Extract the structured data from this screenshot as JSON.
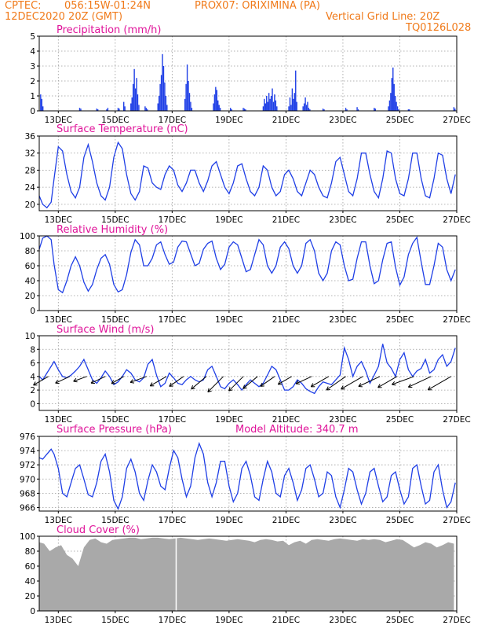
{
  "header": {
    "source": "CPTEC:",
    "coords": "056:15W-01:24N",
    "station": "PROX07: ORIXIMINA (PA)",
    "datetime": "12DEC2020 20Z (GMT)",
    "grid_note": "Vertical Grid Line: 20Z",
    "code": "TQ0126L028"
  },
  "colors": {
    "header": "#f07a1a",
    "title": "#e0149a",
    "series": "#1f3fe6",
    "cloud": "#a9a9a9",
    "grid": "#999999"
  },
  "x_axis": {
    "unit": "day (12 Dec 2020 = 0)",
    "range": [
      0.33,
      15.0
    ],
    "ticks": [
      {
        "day": 1,
        "label": "13DEC"
      },
      {
        "day": 3,
        "label": "15DEC"
      },
      {
        "day": 5,
        "label": "17DEC"
      },
      {
        "day": 7,
        "label": "19DEC"
      },
      {
        "day": 9,
        "label": "21DEC"
      },
      {
        "day": 11,
        "label": "23DEC"
      },
      {
        "day": 13,
        "label": "25DEC"
      },
      {
        "day": 15,
        "label": "27DEC"
      }
    ]
  },
  "chart_data": [
    {
      "id": "precip",
      "type": "bar",
      "title": "Precipitation (mm/h)",
      "ylim": [
        0,
        5
      ],
      "yticks": [
        0,
        1,
        2,
        3,
        4,
        5
      ],
      "grid": true,
      "x": [
        0.38,
        0.42,
        0.46,
        1.75,
        1.79,
        2.35,
        2.39,
        2.7,
        2.74,
        3.1,
        3.14,
        3.3,
        3.34,
        3.55,
        3.59,
        3.63,
        3.67,
        3.71,
        3.75,
        3.79,
        3.83,
        4.05,
        4.09,
        4.13,
        4.5,
        4.54,
        4.58,
        4.62,
        4.66,
        4.7,
        4.74,
        4.78,
        4.82,
        5.45,
        5.49,
        5.53,
        5.57,
        5.61,
        5.65,
        5.69,
        6.45,
        6.49,
        6.53,
        6.57,
        6.61,
        6.65,
        6.69,
        7.05,
        7.09,
        7.5,
        7.54,
        7.58,
        8.2,
        8.24,
        8.28,
        8.32,
        8.36,
        8.4,
        8.44,
        8.48,
        8.52,
        8.56,
        8.6,
        8.64,
        8.68,
        9.1,
        9.14,
        9.18,
        9.22,
        9.26,
        9.3,
        9.34,
        9.38,
        9.6,
        9.64,
        9.68,
        9.72,
        9.76,
        9.8,
        9.84,
        10.3,
        10.34,
        11.1,
        11.14,
        11.5,
        11.54,
        12.1,
        12.14,
        12.6,
        12.64,
        12.68,
        12.72,
        12.76,
        12.8,
        12.84,
        12.88,
        12.92,
        12.96,
        13.3,
        13.34,
        14.9,
        14.94
      ],
      "values": [
        1.1,
        0.8,
        0.3,
        0.2,
        0.15,
        0.15,
        0.1,
        0.1,
        0.2,
        0.2,
        0.15,
        0.6,
        0.3,
        0.5,
        0.9,
        1.8,
        2.8,
        1.5,
        2.2,
        1.1,
        0.4,
        0.3,
        0.2,
        0.1,
        0.5,
        1.0,
        1.8,
        2.4,
        3.8,
        3.0,
        1.9,
        1.0,
        0.4,
        0.8,
        1.8,
        3.1,
        2.0,
        1.2,
        0.6,
        0.2,
        0.5,
        1.1,
        1.6,
        1.4,
        0.7,
        0.4,
        0.2,
        0.2,
        0.1,
        0.2,
        0.15,
        0.1,
        0.3,
        0.8,
        0.5,
        1.0,
        0.6,
        1.2,
        0.8,
        1.0,
        1.5,
        0.6,
        1.1,
        0.7,
        0.3,
        0.3,
        0.9,
        0.4,
        1.5,
        0.8,
        1.2,
        2.7,
        0.6,
        0.3,
        0.5,
        0.9,
        0.4,
        0.6,
        0.2,
        0.1,
        0.15,
        0.1,
        0.2,
        0.1,
        0.25,
        0.1,
        0.2,
        0.15,
        0.3,
        0.7,
        1.2,
        2.2,
        2.9,
        1.8,
        1.0,
        0.6,
        0.3,
        0.1,
        0.1,
        0.1,
        0.25,
        0.15
      ]
    },
    {
      "id": "temp",
      "type": "line",
      "title": "Surface Temperature (nC)",
      "ylim": [
        18.5,
        36
      ],
      "yticks": [
        20,
        24,
        28,
        32,
        36
      ],
      "grid": true,
      "x": [
        0.33,
        0.45,
        0.6,
        0.75,
        0.85,
        1.0,
        1.15,
        1.3,
        1.45,
        1.6,
        1.75,
        1.9,
        2.05,
        2.2,
        2.35,
        2.5,
        2.65,
        2.8,
        2.95,
        3.1,
        3.25,
        3.4,
        3.55,
        3.7,
        3.85,
        4.0,
        4.15,
        4.3,
        4.45,
        4.6,
        4.75,
        4.9,
        5.05,
        5.2,
        5.35,
        5.5,
        5.65,
        5.8,
        5.95,
        6.1,
        6.25,
        6.4,
        6.55,
        6.7,
        6.85,
        7.0,
        7.15,
        7.3,
        7.45,
        7.6,
        7.75,
        7.9,
        8.05,
        8.2,
        8.35,
        8.5,
        8.65,
        8.8,
        8.95,
        9.1,
        9.25,
        9.4,
        9.55,
        9.7,
        9.85,
        10.0,
        10.15,
        10.3,
        10.45,
        10.6,
        10.75,
        10.9,
        11.05,
        11.2,
        11.35,
        11.5,
        11.65,
        11.8,
        11.95,
        12.1,
        12.25,
        12.4,
        12.55,
        12.7,
        12.85,
        13.0,
        13.15,
        13.3,
        13.45,
        13.6,
        13.75,
        13.9,
        14.05,
        14.2,
        14.35,
        14.5,
        14.65,
        14.8,
        14.95
      ],
      "values": [
        22,
        20,
        19.2,
        20.5,
        26,
        33.5,
        32.5,
        27,
        23,
        21.5,
        24,
        31,
        34,
        30,
        25,
        22,
        21,
        24,
        31,
        34.5,
        33,
        27,
        22.5,
        21,
        23,
        29,
        28.5,
        25,
        24,
        23.5,
        27,
        29,
        28,
        24.5,
        23,
        25,
        28,
        28,
        25,
        23,
        25.5,
        29,
        30,
        27,
        24,
        22.5,
        25,
        29,
        29.5,
        26,
        23,
        22,
        24,
        29,
        28,
        24,
        22,
        23,
        27,
        28,
        26,
        23,
        22,
        25,
        28,
        27,
        24,
        22,
        21.5,
        25,
        30,
        31,
        27,
        23,
        22,
        26,
        32,
        32,
        27,
        23,
        21.5,
        26,
        32.5,
        32,
        26,
        22.5,
        22,
        26,
        32,
        32,
        26,
        22,
        21.5,
        26,
        32,
        31.5,
        26,
        22.5,
        27
      ]
    },
    {
      "id": "humidity",
      "type": "line",
      "title": "Relative Humidity (%)",
      "ylim": [
        0,
        100
      ],
      "yticks": [
        0,
        20,
        40,
        60,
        80,
        100
      ],
      "grid": true,
      "x": [
        0.33,
        0.45,
        0.6,
        0.75,
        0.85,
        1.0,
        1.15,
        1.3,
        1.45,
        1.6,
        1.75,
        1.9,
        2.05,
        2.2,
        2.35,
        2.5,
        2.65,
        2.8,
        2.95,
        3.1,
        3.25,
        3.4,
        3.55,
        3.7,
        3.85,
        4.0,
        4.15,
        4.3,
        4.45,
        4.6,
        4.75,
        4.9,
        5.05,
        5.2,
        5.35,
        5.5,
        5.65,
        5.8,
        5.95,
        6.1,
        6.25,
        6.4,
        6.55,
        6.7,
        6.85,
        7.0,
        7.15,
        7.3,
        7.45,
        7.6,
        7.75,
        7.9,
        8.05,
        8.2,
        8.35,
        8.5,
        8.65,
        8.8,
        8.95,
        9.1,
        9.25,
        9.4,
        9.55,
        9.7,
        9.85,
        10.0,
        10.15,
        10.3,
        10.45,
        10.6,
        10.75,
        10.9,
        11.05,
        11.2,
        11.35,
        11.5,
        11.65,
        11.8,
        11.95,
        12.1,
        12.25,
        12.4,
        12.55,
        12.7,
        12.85,
        13.0,
        13.15,
        13.3,
        13.45,
        13.6,
        13.75,
        13.9,
        14.05,
        14.2,
        14.35,
        14.5,
        14.65,
        14.8,
        14.95
      ],
      "values": [
        82,
        97,
        100,
        95,
        62,
        28,
        24,
        40,
        60,
        72,
        60,
        38,
        26,
        35,
        55,
        70,
        75,
        62,
        35,
        25,
        28,
        48,
        78,
        95,
        88,
        60,
        60,
        70,
        88,
        92,
        75,
        62,
        65,
        85,
        93,
        92,
        76,
        60,
        63,
        82,
        90,
        93,
        70,
        55,
        62,
        85,
        92,
        88,
        70,
        52,
        55,
        75,
        95,
        88,
        60,
        50,
        60,
        85,
        92,
        83,
        60,
        50,
        60,
        90,
        95,
        80,
        50,
        40,
        50,
        80,
        92,
        88,
        60,
        40,
        42,
        70,
        92,
        92,
        60,
        36,
        40,
        68,
        90,
        92,
        58,
        34,
        45,
        75,
        90,
        98,
        65,
        35,
        35,
        60,
        90,
        85,
        55,
        40,
        55
      ]
    },
    {
      "id": "wind",
      "type": "line",
      "title": "Surface Wind (m/s)",
      "ylim": [
        -1,
        10
      ],
      "yticks": [
        0,
        2,
        4,
        6,
        8,
        10
      ],
      "grid": true,
      "x": [
        0.33,
        0.45,
        0.6,
        0.75,
        0.85,
        1.0,
        1.15,
        1.3,
        1.45,
        1.6,
        1.75,
        1.9,
        2.05,
        2.2,
        2.35,
        2.5,
        2.65,
        2.8,
        2.95,
        3.1,
        3.25,
        3.4,
        3.55,
        3.7,
        3.85,
        4.0,
        4.15,
        4.3,
        4.45,
        4.6,
        4.75,
        4.9,
        5.05,
        5.2,
        5.35,
        5.5,
        5.65,
        5.8,
        5.95,
        6.1,
        6.25,
        6.4,
        6.55,
        6.7,
        6.85,
        7.0,
        7.15,
        7.3,
        7.45,
        7.6,
        7.75,
        7.9,
        8.05,
        8.2,
        8.35,
        8.5,
        8.65,
        8.8,
        8.95,
        9.1,
        9.25,
        9.4,
        9.55,
        9.7,
        9.85,
        10.0,
        10.15,
        10.3,
        10.45,
        10.6,
        10.75,
        10.9,
        11.05,
        11.2,
        11.35,
        11.5,
        11.65,
        11.8,
        11.95,
        12.1,
        12.25,
        12.4,
        12.55,
        12.7,
        12.85,
        13.0,
        13.15,
        13.3,
        13.45,
        13.6,
        13.75,
        13.9,
        14.05,
        14.2,
        14.35,
        14.5,
        14.65,
        14.8,
        14.95
      ],
      "values": [
        4,
        3.5,
        4.5,
        5.5,
        6.2,
        5,
        4,
        3.8,
        4.2,
        4.8,
        5.5,
        6.5,
        5,
        3.5,
        3,
        3.8,
        4.8,
        4,
        2.8,
        3.2,
        4,
        5,
        4.5,
        3.5,
        3.2,
        3.8,
        5.8,
        6.5,
        4.2,
        2.5,
        3,
        4.5,
        3.8,
        3,
        2.8,
        3.5,
        4,
        3.5,
        3.2,
        3.5,
        5,
        5.5,
        4,
        2.5,
        2.2,
        3,
        3.5,
        2.8,
        2,
        2.8,
        3.5,
        3,
        2.5,
        3,
        4.2,
        5.5,
        5,
        3.5,
        2,
        2,
        2.5,
        3.5,
        3,
        2.2,
        1.8,
        1.5,
        2.5,
        3.2,
        3,
        2.8,
        3.5,
        4.2,
        8.2,
        6.5,
        4,
        5.5,
        6.2,
        4.8,
        3,
        4.2,
        5.5,
        8.8,
        6,
        5.2,
        4,
        6.5,
        7.5,
        5,
        4,
        4.8,
        5.2,
        6.5,
        4.5,
        5,
        6.5,
        7.2,
        5.5,
        6.2,
        8.2
      ],
      "vectors_x": [
        0.65,
        1.4,
        2.0,
        2.65,
        3.3,
        4.1,
        4.8,
        5.4,
        6.2,
        6.8,
        7.5,
        8.0,
        8.6,
        9.2,
        9.9,
        10.5,
        11.1,
        11.7,
        12.3,
        12.9,
        13.5,
        14.1,
        14.8
      ],
      "vectors_angle_deg": [
        210,
        205,
        200,
        205,
        210,
        200,
        210,
        215,
        220,
        225,
        225,
        220,
        215,
        210,
        205,
        210,
        215,
        210,
        205,
        210,
        200,
        205,
        210
      ],
      "vectors_len": [
        22,
        20,
        18,
        20,
        18,
        22,
        24,
        22,
        25,
        28,
        26,
        24,
        22,
        20,
        22,
        26,
        30,
        32,
        30,
        28,
        30,
        32,
        34
      ]
    },
    {
      "id": "pressure",
      "type": "line",
      "title": "Surface Pressure (hPa)",
      "annotation": "Model Altitude: 340.7 m",
      "ylim": [
        965.5,
        976
      ],
      "yticks": [
        966,
        968,
        970,
        972,
        974,
        976
      ],
      "grid": true,
      "x": [
        0.33,
        0.45,
        0.6,
        0.75,
        0.85,
        1.0,
        1.15,
        1.3,
        1.45,
        1.6,
        1.75,
        1.9,
        2.05,
        2.2,
        2.35,
        2.5,
        2.65,
        2.8,
        2.95,
        3.1,
        3.25,
        3.4,
        3.55,
        3.7,
        3.85,
        4.0,
        4.15,
        4.3,
        4.45,
        4.6,
        4.75,
        4.9,
        5.05,
        5.2,
        5.35,
        5.5,
        5.65,
        5.8,
        5.95,
        6.1,
        6.25,
        6.4,
        6.55,
        6.7,
        6.85,
        7.0,
        7.15,
        7.3,
        7.45,
        7.6,
        7.75,
        7.9,
        8.05,
        8.2,
        8.35,
        8.5,
        8.65,
        8.8,
        8.95,
        9.1,
        9.25,
        9.4,
        9.55,
        9.7,
        9.85,
        10.0,
        10.15,
        10.3,
        10.45,
        10.6,
        10.75,
        10.9,
        11.05,
        11.2,
        11.35,
        11.5,
        11.65,
        11.8,
        11.95,
        12.1,
        12.25,
        12.4,
        12.55,
        12.7,
        12.85,
        13.0,
        13.15,
        13.3,
        13.45,
        13.6,
        13.75,
        13.9,
        14.05,
        14.2,
        14.35,
        14.5,
        14.65,
        14.8,
        14.95
      ],
      "values": [
        973,
        972.8,
        973.5,
        974.2,
        973.5,
        971.5,
        968,
        967.5,
        969.5,
        971.5,
        972,
        970,
        967.8,
        967.5,
        969.5,
        972.5,
        973.5,
        971,
        967,
        965.8,
        967.5,
        971.5,
        972.8,
        971,
        968,
        967,
        969.8,
        972,
        971,
        969,
        968.5,
        971.5,
        974,
        973,
        970,
        967.5,
        969,
        973,
        975,
        973.5,
        969.5,
        967.5,
        969.5,
        972.5,
        972.5,
        969,
        966.8,
        968,
        971.5,
        972.5,
        970.5,
        967.5,
        967,
        970,
        972.5,
        971,
        968,
        967.5,
        970.5,
        971.5,
        969.5,
        967,
        968.5,
        971.5,
        972,
        970,
        967.5,
        968,
        971,
        970.5,
        967.5,
        966,
        968.5,
        971.5,
        971,
        968.5,
        966.5,
        968,
        971,
        971.5,
        969,
        966.8,
        967.5,
        970.5,
        971,
        968.5,
        966.5,
        967.5,
        971.5,
        972,
        969,
        966.5,
        967,
        971,
        972,
        968.5,
        966,
        966.8,
        969.5
      ]
    },
    {
      "id": "cloud",
      "type": "area",
      "title": "Cloud Cover (%)",
      "ylim": [
        0,
        100
      ],
      "yticks": [
        0,
        20,
        40,
        60,
        80,
        100
      ],
      "grid": true,
      "x": [
        0.33,
        0.5,
        0.7,
        0.9,
        1.1,
        1.3,
        1.5,
        1.7,
        1.9,
        2.1,
        2.3,
        2.5,
        2.7,
        2.9,
        3.1,
        3.3,
        3.5,
        3.7,
        3.9,
        4.1,
        4.3,
        4.5,
        4.7,
        4.9,
        5.1,
        5.3,
        5.5,
        5.7,
        5.9,
        6.1,
        6.3,
        6.5,
        6.7,
        6.9,
        7.1,
        7.3,
        7.5,
        7.7,
        7.9,
        8.1,
        8.3,
        8.5,
        8.7,
        8.9,
        9.1,
        9.3,
        9.5,
        9.7,
        9.9,
        10.1,
        10.3,
        10.5,
        10.7,
        10.9,
        11.1,
        11.3,
        11.5,
        11.7,
        11.9,
        12.1,
        12.3,
        12.5,
        12.7,
        12.9,
        13.1,
        13.3,
        13.5,
        13.7,
        13.9,
        14.1,
        14.3,
        14.5,
        14.7,
        14.9
      ],
      "values": [
        92,
        90,
        80,
        85,
        88,
        75,
        70,
        60,
        85,
        95,
        97,
        92,
        90,
        95,
        96,
        97,
        98,
        98,
        96,
        97,
        98,
        98,
        97,
        96,
        97,
        98,
        97,
        96,
        95,
        96,
        97,
        96,
        95,
        94,
        95,
        96,
        95,
        94,
        92,
        95,
        96,
        95,
        93,
        94,
        88,
        92,
        94,
        90,
        95,
        96,
        95,
        94,
        96,
        97,
        96,
        95,
        94,
        96,
        95,
        96,
        95,
        92,
        94,
        96,
        95,
        90,
        85,
        88,
        92,
        90,
        85,
        88,
        92,
        90
      ],
      "gap_x": [
        5.12,
        5.16
      ]
    }
  ]
}
